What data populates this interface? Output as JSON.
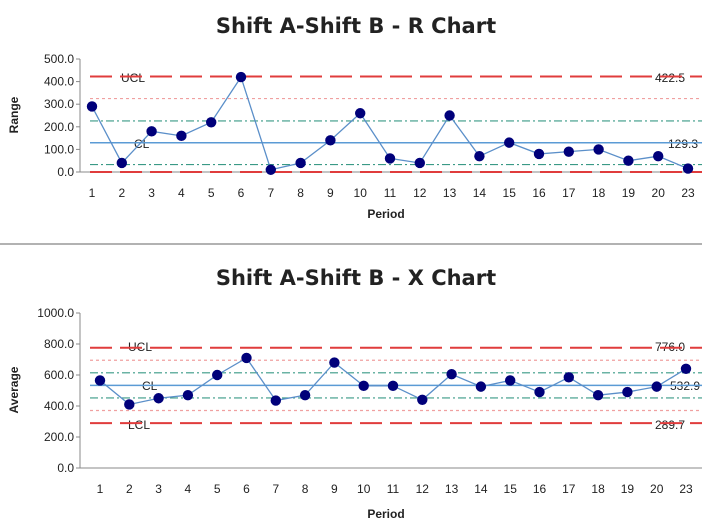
{
  "chart_data": [
    {
      "type": "line",
      "title": "Shift A-Shift B - R Chart",
      "xlabel": "Period",
      "ylabel": "Range",
      "categories": [
        "1",
        "2",
        "3",
        "4",
        "5",
        "6",
        "7",
        "8",
        "9",
        "10",
        "11",
        "12",
        "13",
        "14",
        "15",
        "16",
        "17",
        "18",
        "19",
        "20",
        "23"
      ],
      "yticks": [
        "0.0",
        "100.0",
        "200.0",
        "300.0",
        "400.0",
        "500.0"
      ],
      "ylim": [
        0,
        500
      ],
      "series": [
        {
          "values": [
            290,
            40,
            180,
            160,
            220,
            420,
            10,
            40,
            140,
            260,
            60,
            40,
            250,
            70,
            130,
            80,
            90,
            100,
            50,
            70,
            15
          ]
        }
      ],
      "lines": {
        "ucl": 422.5,
        "cl": 129.3,
        "lcl": 0,
        "upper_2sigma": 325,
        "upper_1sigma": 226,
        "lower_1sigma": 33
      },
      "labels": {
        "ucl": "UCL",
        "cl": "CL",
        "ucl_value": "422.5",
        "cl_value": "129.3"
      },
      "colors": {
        "series": "#5b8fc9",
        "marker": "#00007a",
        "control": "#e03c3c",
        "sigma2": "#f0a0a0",
        "sigma1": "#3a9a86",
        "center": "#5b9bd5"
      }
    },
    {
      "type": "line",
      "title": "Shift A-Shift B - X Chart",
      "xlabel": "Period",
      "ylabel": "Average",
      "categories": [
        "1",
        "2",
        "3",
        "4",
        "5",
        "6",
        "7",
        "8",
        "9",
        "10",
        "11",
        "12",
        "13",
        "14",
        "15",
        "16",
        "17",
        "18",
        "19",
        "20",
        "23"
      ],
      "yticks": [
        "0.0",
        "200.0",
        "400.0",
        "600.0",
        "800.0",
        "1000.0"
      ],
      "ylim": [
        0,
        1000
      ],
      "series": [
        {
          "values": [
            565,
            410,
            450,
            470,
            600,
            710,
            435,
            470,
            680,
            530,
            530,
            440,
            605,
            525,
            565,
            490,
            585,
            470,
            490,
            525,
            640
          ]
        }
      ],
      "lines": {
        "ucl": 776.0,
        "cl": 532.9,
        "lcl": 289.7,
        "upper_2sigma": 695,
        "upper_1sigma": 614,
        "lower_1sigma": 452,
        "lower_2sigma": 371
      },
      "labels": {
        "ucl": "UCL",
        "cl": "CL",
        "lcl": "LCL",
        "ucl_value": "776.0",
        "cl_value": "532.9",
        "lcl_value": "289.7"
      },
      "colors": {
        "series": "#5b8fc9",
        "marker": "#00007a",
        "control": "#e03c3c",
        "sigma2": "#f0a0a0",
        "sigma1": "#3a9a86",
        "center": "#5b9bd5"
      }
    }
  ]
}
